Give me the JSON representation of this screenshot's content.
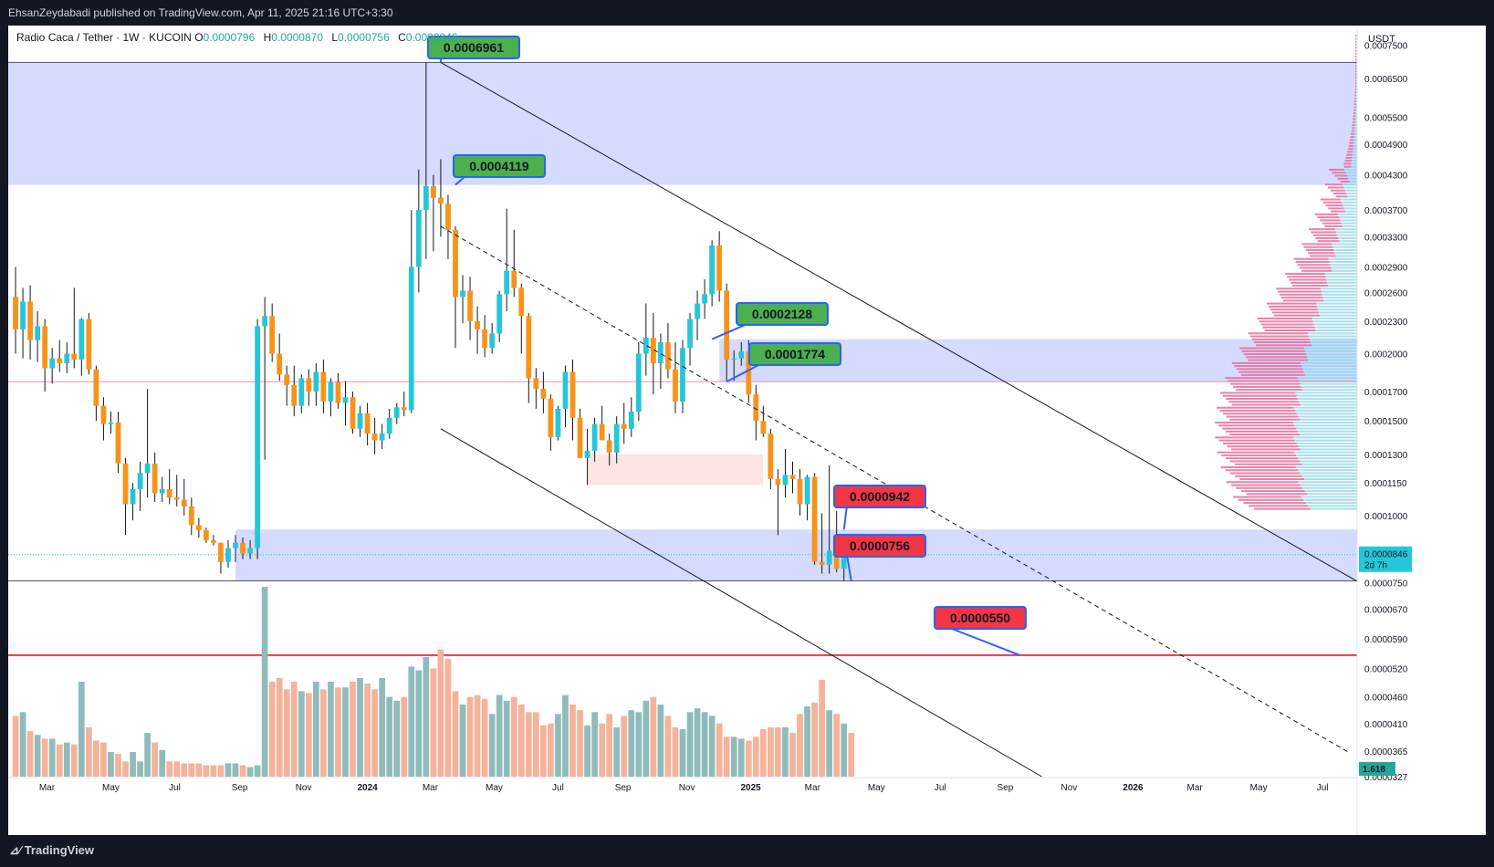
{
  "header": {
    "publisher_line": "EhsanZeydabadi published on TradingView.com, Apr 11, 2025 21:16 UTC+3:30"
  },
  "legend": {
    "symbol": "Radio Caca / Tether · 1W · KUCOIN",
    "o_label": "O",
    "o": "0.0000796",
    "h_label": "H",
    "h": "0.0000870",
    "l_label": "L",
    "l": "0.0000756",
    "c_label": "C",
    "c": "0.0000846"
  },
  "footer": {
    "brand": "TradingView"
  },
  "colors": {
    "up": "#26c6da",
    "down": "#f7931a",
    "zone": "#3d5afe",
    "pink_zone": "#f8bbd0",
    "label_green": "#4caf50",
    "label_red": "#f23645",
    "support_red": "#e53950",
    "vol_up": "#8fbcbb",
    "vol_down": "#f4b39a",
    "profile_pink": "#e86a9a",
    "profile_blue": "#89d4e8",
    "price_tag": "#26c6da"
  },
  "chart_data": {
    "type": "candlestick",
    "title": "Radio Caca / Tether · 1W · KUCOIN",
    "ylabel": "USDT",
    "y_scale": "log",
    "ylim": [
      3.27e-05,
      0.00079
    ],
    "y_ticks": [
      "0.0007500",
      "0.0006500",
      "0.0005500",
      "0.0004900",
      "0.0004300",
      "0.0003700",
      "0.0003300",
      "0.0002900",
      "0.0002600",
      "0.0002300",
      "0.0002000",
      "0.0001700",
      "0.0001500",
      "0.0001300",
      "0.0001150",
      "0.0001000",
      "0.0000750",
      "0.0000670",
      "0.0000590",
      "0.0000520",
      "0.0000460",
      "0.0000410",
      "0.0000365",
      "0.0000327"
    ],
    "x_ticks": [
      "Mar",
      "May",
      "Jul",
      "Sep",
      "Nov",
      "2024",
      "Mar",
      "May",
      "Jul",
      "Sep",
      "Nov",
      "2025",
      "Mar",
      "May",
      "Jul",
      "Sep",
      "Nov",
      "2026",
      "Mar",
      "May",
      "Jul"
    ],
    "x_tick_dates": [
      "2023-03-01",
      "2023-05-01",
      "2023-07-01",
      "2023-09-01",
      "2023-11-01",
      "2024-01-01",
      "2024-03-01",
      "2024-05-01",
      "2024-07-01",
      "2024-09-01",
      "2024-11-01",
      "2025-01-01",
      "2025-03-01",
      "2025-05-01",
      "2025-07-01",
      "2025-09-01",
      "2025-11-01",
      "2026-01-01",
      "2026-03-01",
      "2026-05-01",
      "2026-07-01"
    ],
    "x_range": [
      "2023-01-23",
      "2026-08-03"
    ],
    "current_price": "0.0000846",
    "countdown": "2d 7h",
    "volume_label": "1.618",
    "annotations": [
      {
        "text": "0.0006961",
        "value": 0.0006961,
        "color": "green"
      },
      {
        "text": "0.0004119",
        "value": 0.0004119,
        "color": "green"
      },
      {
        "text": "0.0002128",
        "value": 0.0002128,
        "color": "green"
      },
      {
        "text": "0.0001774",
        "value": 0.0001774,
        "color": "green"
      },
      {
        "text": "0.0000942",
        "value": 9.42e-05,
        "color": "red"
      },
      {
        "text": "0.0000756",
        "value": 7.56e-05,
        "color": "red"
      },
      {
        "text": "0.0000550",
        "value": 5.5e-05,
        "color": "red"
      }
    ],
    "zones": [
      {
        "from": "2023-01-23",
        "to": "2026-08-03",
        "low": 0.0004119,
        "high": 0.0006961,
        "color": "blue"
      },
      {
        "from": "2024-12-02",
        "to": "2026-08-03",
        "low": 0.0001774,
        "high": 0.0002128,
        "color": "blue"
      },
      {
        "from": "2023-08-28",
        "to": "2026-08-03",
        "low": 7.56e-05,
        "high": 9.42e-05,
        "color": "blue"
      },
      {
        "from": "2024-07-29",
        "to": "2025-01-13",
        "low": 0.000114,
        "high": 0.00013,
        "color": "pink"
      }
    ],
    "horizontal_lines": [
      {
        "value": 0.0006961,
        "color": "gray"
      },
      {
        "value": 7.56e-05,
        "color": "gray"
      },
      {
        "value": 0.0001774,
        "color": "pink"
      },
      {
        "value": 5.5e-05,
        "color": "red"
      }
    ],
    "trendlines": [
      {
        "from": [
          "2024-03-11",
          0.0006961
        ],
        "to": [
          "2026-08-03",
          7.55e-05
        ],
        "style": "solid"
      },
      {
        "from": [
          "2024-03-11",
          0.000145
        ],
        "to": [
          "2025-10-06",
          3.27e-05
        ],
        "style": "solid"
      },
      {
        "from": [
          "2024-03-11",
          0.000345
        ],
        "to": [
          "2026-07-27",
          3.62e-05
        ],
        "style": "dashed"
      }
    ],
    "candles": [
      {
        "o": 0.000255,
        "h": 0.00029,
        "l": 0.0002,
        "c": 0.000222
      },
      {
        "o": 0.000222,
        "h": 0.000265,
        "l": 0.000196,
        "c": 0.00025
      },
      {
        "o": 0.00025,
        "h": 0.000268,
        "l": 0.000195,
        "c": 0.000212
      },
      {
        "o": 0.000212,
        "h": 0.00024,
        "l": 0.000193,
        "c": 0.000225
      },
      {
        "o": 0.000225,
        "h": 0.000232,
        "l": 0.00017,
        "c": 0.000188
      },
      {
        "o": 0.000188,
        "h": 0.000205,
        "l": 0.000176,
        "c": 0.000196
      },
      {
        "o": 0.000196,
        "h": 0.000212,
        "l": 0.000185,
        "c": 0.000192
      },
      {
        "o": 0.000192,
        "h": 0.00021,
        "l": 0.000184,
        "c": 0.0002
      },
      {
        "o": 0.0002,
        "h": 0.000265,
        "l": 0.000188,
        "c": 0.000195
      },
      {
        "o": 0.000195,
        "h": 0.000233,
        "l": 0.000182,
        "c": 0.000232
      },
      {
        "o": 0.000232,
        "h": 0.000238,
        "l": 0.000183,
        "c": 0.000187
      },
      {
        "o": 0.000187,
        "h": 0.00019,
        "l": 0.00015,
        "c": 0.00016
      },
      {
        "o": 0.00016,
        "h": 0.000166,
        "l": 0.000138,
        "c": 0.000148
      },
      {
        "o": 0.000148,
        "h": 0.000156,
        "l": 0.000142,
        "c": 0.000149
      },
      {
        "o": 0.000149,
        "h": 0.000156,
        "l": 0.00012,
        "c": 0.000125
      },
      {
        "o": 0.000125,
        "h": 0.000128,
        "l": 9.2e-05,
        "c": 0.000105
      },
      {
        "o": 0.000105,
        "h": 0.000115,
        "l": 9.8e-05,
        "c": 0.000112
      },
      {
        "o": 0.000112,
        "h": 0.000126,
        "l": 0.000102,
        "c": 0.00012
      },
      {
        "o": 0.00012,
        "h": 0.000172,
        "l": 0.000108,
        "c": 0.000125
      },
      {
        "o": 0.000125,
        "h": 0.000131,
        "l": 0.000106,
        "c": 0.00011
      },
      {
        "o": 0.00011,
        "h": 0.000118,
        "l": 0.000106,
        "c": 0.000112
      },
      {
        "o": 0.000112,
        "h": 0.000122,
        "l": 0.000105,
        "c": 0.000108
      },
      {
        "o": 0.000108,
        "h": 0.000119,
        "l": 0.000104,
        "c": 0.000107
      },
      {
        "o": 0.000107,
        "h": 0.000117,
        "l": 0.0001,
        "c": 0.000104
      },
      {
        "o": 0.000104,
        "h": 0.000108,
        "l": 9.2e-05,
        "c": 9.6e-05
      },
      {
        "o": 9.6e-05,
        "h": 9.9e-05,
        "l": 9.1e-05,
        "c": 9.4e-05
      },
      {
        "o": 9.4e-05,
        "h": 9.5e-05,
        "l": 8.9e-05,
        "c": 9e-05
      },
      {
        "o": 9e-05,
        "h": 9.2e-05,
        "l": 8.8e-05,
        "c": 8.9e-05
      },
      {
        "o": 8.9e-05,
        "h": 8.9e-05,
        "l": 7.8e-05,
        "c": 8.2e-05
      },
      {
        "o": 8.2e-05,
        "h": 9e-05,
        "l": 8e-05,
        "c": 8.7e-05
      },
      {
        "o": 8.7e-05,
        "h": 9.2e-05,
        "l": 8.2e-05,
        "c": 8.9e-05
      },
      {
        "o": 8.9e-05,
        "h": 9.1e-05,
        "l": 8.3e-05,
        "c": 8.5e-05
      },
      {
        "o": 8.5e-05,
        "h": 9e-05,
        "l": 8.3e-05,
        "c": 8.7e-05
      },
      {
        "o": 8.7e-05,
        "h": 0.000232,
        "l": 8.3e-05,
        "c": 0.000225
      },
      {
        "o": 0.000225,
        "h": 0.000255,
        "l": 0.000127,
        "c": 0.000235
      },
      {
        "o": 0.000235,
        "h": 0.000248,
        "l": 0.000193,
        "c": 0.0002
      },
      {
        "o": 0.0002,
        "h": 0.000218,
        "l": 0.000178,
        "c": 0.000183
      },
      {
        "o": 0.000183,
        "h": 0.00019,
        "l": 0.00016,
        "c": 0.000175
      },
      {
        "o": 0.000175,
        "h": 0.00019,
        "l": 0.000153,
        "c": 0.00016
      },
      {
        "o": 0.00016,
        "h": 0.000183,
        "l": 0.000155,
        "c": 0.00018
      },
      {
        "o": 0.00018,
        "h": 0.000187,
        "l": 0.00016,
        "c": 0.00017
      },
      {
        "o": 0.00017,
        "h": 0.000192,
        "l": 0.00016,
        "c": 0.000185
      },
      {
        "o": 0.000185,
        "h": 0.000195,
        "l": 0.000155,
        "c": 0.000163
      },
      {
        "o": 0.000163,
        "h": 0.00018,
        "l": 0.000153,
        "c": 0.000177
      },
      {
        "o": 0.000177,
        "h": 0.000184,
        "l": 0.000158,
        "c": 0.000162
      },
      {
        "o": 0.000162,
        "h": 0.000178,
        "l": 0.000147,
        "c": 0.000166
      },
      {
        "o": 0.000166,
        "h": 0.00017,
        "l": 0.000142,
        "c": 0.000145
      },
      {
        "o": 0.000145,
        "h": 0.00016,
        "l": 0.00014,
        "c": 0.000155
      },
      {
        "o": 0.000155,
        "h": 0.000162,
        "l": 0.000135,
        "c": 0.000142
      },
      {
        "o": 0.000142,
        "h": 0.000152,
        "l": 0.00013,
        "c": 0.000138
      },
      {
        "o": 0.000138,
        "h": 0.000148,
        "l": 0.000133,
        "c": 0.000142
      },
      {
        "o": 0.000142,
        "h": 0.000158,
        "l": 0.000139,
        "c": 0.000152
      },
      {
        "o": 0.000152,
        "h": 0.000162,
        "l": 0.000148,
        "c": 0.000159
      },
      {
        "o": 0.000159,
        "h": 0.00017,
        "l": 0.000153,
        "c": 0.000157
      },
      {
        "o": 0.000157,
        "h": 0.00037,
        "l": 0.000155,
        "c": 0.00029
      },
      {
        "o": 0.00029,
        "h": 0.00044,
        "l": 0.00026,
        "c": 0.00037
      },
      {
        "o": 0.00037,
        "h": 0.0006961,
        "l": 0.0003,
        "c": 0.00041
      },
      {
        "o": 0.00041,
        "h": 0.00043,
        "l": 0.00031,
        "c": 0.00039
      },
      {
        "o": 0.00039,
        "h": 0.00046,
        "l": 0.00033,
        "c": 0.00038
      },
      {
        "o": 0.00038,
        "h": 0.000395,
        "l": 0.0003,
        "c": 0.00034
      },
      {
        "o": 0.00034,
        "h": 0.000345,
        "l": 0.000205,
        "c": 0.000255
      },
      {
        "o": 0.000255,
        "h": 0.00028,
        "l": 0.000228,
        "c": 0.000262
      },
      {
        "o": 0.000262,
        "h": 0.000278,
        "l": 0.000212,
        "c": 0.00023
      },
      {
        "o": 0.00023,
        "h": 0.000245,
        "l": 0.0002,
        "c": 0.000222
      },
      {
        "o": 0.000222,
        "h": 0.000236,
        "l": 0.000197,
        "c": 0.000205
      },
      {
        "o": 0.000205,
        "h": 0.000228,
        "l": 0.0002,
        "c": 0.000218
      },
      {
        "o": 0.000218,
        "h": 0.000262,
        "l": 0.00021,
        "c": 0.000258
      },
      {
        "o": 0.000258,
        "h": 0.000372,
        "l": 0.00024,
        "c": 0.000285
      },
      {
        "o": 0.000285,
        "h": 0.00034,
        "l": 0.000255,
        "c": 0.000265
      },
      {
        "o": 0.000265,
        "h": 0.00027,
        "l": 0.0002,
        "c": 0.000235
      },
      {
        "o": 0.000235,
        "h": 0.000238,
        "l": 0.000162,
        "c": 0.00018
      },
      {
        "o": 0.00018,
        "h": 0.000188,
        "l": 0.000158,
        "c": 0.000172
      },
      {
        "o": 0.000172,
        "h": 0.000185,
        "l": 0.000155,
        "c": 0.000165
      },
      {
        "o": 0.000165,
        "h": 0.000168,
        "l": 0.000132,
        "c": 0.00014
      },
      {
        "o": 0.00014,
        "h": 0.00016,
        "l": 0.000138,
        "c": 0.000158
      },
      {
        "o": 0.000158,
        "h": 0.00019,
        "l": 0.000146,
        "c": 0.000185
      },
      {
        "o": 0.000185,
        "h": 0.000195,
        "l": 0.000138,
        "c": 0.000152
      },
      {
        "o": 0.000152,
        "h": 0.000158,
        "l": 0.000128,
        "c": 0.000128
      },
      {
        "o": 0.000128,
        "h": 0.000145,
        "l": 0.000114,
        "c": 0.000132
      },
      {
        "o": 0.000132,
        "h": 0.000152,
        "l": 0.000126,
        "c": 0.000148
      },
      {
        "o": 0.000148,
        "h": 0.00016,
        "l": 0.000142,
        "c": 0.000138
      },
      {
        "o": 0.000138,
        "h": 0.000142,
        "l": 0.000124,
        "c": 0.000131
      },
      {
        "o": 0.000131,
        "h": 0.000153,
        "l": 0.000125,
        "c": 0.000148
      },
      {
        "o": 0.000148,
        "h": 0.000162,
        "l": 0.000136,
        "c": 0.000145
      },
      {
        "o": 0.000145,
        "h": 0.000166,
        "l": 0.00014,
        "c": 0.000156
      },
      {
        "o": 0.000156,
        "h": 0.00021,
        "l": 0.00015,
        "c": 0.0002
      },
      {
        "o": 0.0002,
        "h": 0.000248,
        "l": 0.000182,
        "c": 0.000214
      },
      {
        "o": 0.000214,
        "h": 0.000238,
        "l": 0.000168,
        "c": 0.000192
      },
      {
        "o": 0.000192,
        "h": 0.000218,
        "l": 0.000172,
        "c": 0.00021
      },
      {
        "o": 0.00021,
        "h": 0.000228,
        "l": 0.00018,
        "c": 0.000187
      },
      {
        "o": 0.000187,
        "h": 0.00021,
        "l": 0.000155,
        "c": 0.000163
      },
      {
        "o": 0.000163,
        "h": 0.000212,
        "l": 0.000155,
        "c": 0.000205
      },
      {
        "o": 0.000205,
        "h": 0.000238,
        "l": 0.00019,
        "c": 0.000232
      },
      {
        "o": 0.000232,
        "h": 0.000262,
        "l": 0.000212,
        "c": 0.000248
      },
      {
        "o": 0.000248,
        "h": 0.000275,
        "l": 0.000232,
        "c": 0.000258
      },
      {
        "o": 0.000258,
        "h": 0.000325,
        "l": 0.000245,
        "c": 0.000318
      },
      {
        "o": 0.000318,
        "h": 0.000338,
        "l": 0.00025,
        "c": 0.000262
      },
      {
        "o": 0.000262,
        "h": 0.00027,
        "l": 0.000178,
        "c": 0.000195
      },
      {
        "o": 0.000195,
        "h": 0.000203,
        "l": 0.000178,
        "c": 0.000196
      },
      {
        "o": 0.000196,
        "h": 0.00021,
        "l": 0.00019,
        "c": 0.000202
      },
      {
        "o": 0.000202,
        "h": 0.000212,
        "l": 0.000162,
        "c": 0.000168
      },
      {
        "o": 0.000168,
        "h": 0.000175,
        "l": 0.000138,
        "c": 0.00015
      },
      {
        "o": 0.00015,
        "h": 0.00016,
        "l": 0.00014,
        "c": 0.000142
      },
      {
        "o": 0.000142,
        "h": 0.000145,
        "l": 0.000112,
        "c": 0.000117
      },
      {
        "o": 0.000117,
        "h": 0.000122,
        "l": 9.2e-05,
        "c": 0.000114
      },
      {
        "o": 0.000114,
        "h": 0.000133,
        "l": 0.000108,
        "c": 0.000119
      },
      {
        "o": 0.000119,
        "h": 0.000126,
        "l": 0.00011,
        "c": 0.000117
      },
      {
        "o": 0.000117,
        "h": 0.000122,
        "l": 0.0001,
        "c": 0.000105
      },
      {
        "o": 0.000105,
        "h": 0.000119,
        "l": 9.8e-05,
        "c": 0.000118
      },
      {
        "o": 0.000118,
        "h": 0.00012,
        "l": 8.1e-05,
        "c": 8.2e-05
      },
      {
        "o": 8.2e-05,
        "h": 0.000101,
        "l": 7.8e-05,
        "c": 8.1e-05
      },
      {
        "o": 8.1e-05,
        "h": 0.000124,
        "l": 7.8e-05,
        "c": 8.6e-05
      },
      {
        "o": 8.6e-05,
        "h": 0.000102,
        "l": 7.85e-05,
        "c": 7.96e-05
      },
      {
        "o": 7.96e-05,
        "h": 8.7e-05,
        "l": 7.56e-05,
        "c": 8.46e-05
      }
    ],
    "volume": [
      0.32,
      0.34,
      0.24,
      0.22,
      0.2,
      0.2,
      0.17,
      0.18,
      0.17,
      0.5,
      0.26,
      0.19,
      0.18,
      0.13,
      0.12,
      0.08,
      0.13,
      0.08,
      0.23,
      0.18,
      0.14,
      0.08,
      0.08,
      0.07,
      0.07,
      0.07,
      0.06,
      0.06,
      0.06,
      0.07,
      0.07,
      0.06,
      0.05,
      0.06,
      1.0,
      0.5,
      0.52,
      0.46,
      0.5,
      0.45,
      0.44,
      0.5,
      0.46,
      0.5,
      0.47,
      0.47,
      0.5,
      0.52,
      0.49,
      0.46,
      0.52,
      0.42,
      0.4,
      0.42,
      0.58,
      0.56,
      0.63,
      0.57,
      0.67,
      0.62,
      0.45,
      0.38,
      0.42,
      0.43,
      0.41,
      0.33,
      0.43,
      0.4,
      0.42,
      0.38,
      0.34,
      0.34,
      0.27,
      0.28,
      0.33,
      0.43,
      0.38,
      0.35,
      0.27,
      0.34,
      0.28,
      0.33,
      0.26,
      0.32,
      0.35,
      0.34,
      0.4,
      0.42,
      0.38,
      0.32,
      0.26,
      0.25,
      0.34,
      0.36,
      0.34,
      0.32,
      0.28,
      0.21,
      0.21,
      0.2,
      0.19,
      0.21,
      0.25,
      0.26,
      0.26,
      0.26,
      0.23,
      0.33,
      0.37,
      0.39,
      0.51,
      0.35,
      0.33,
      0.28,
      0.23
    ]
  }
}
